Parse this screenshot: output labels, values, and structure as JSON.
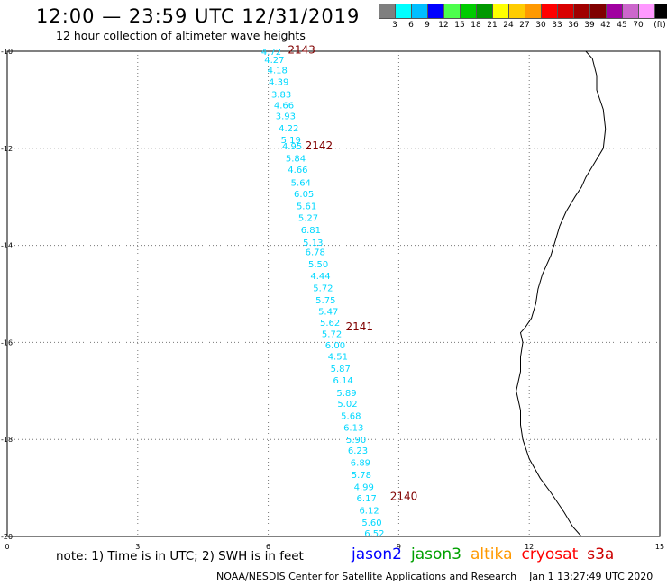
{
  "title": "12:00  —  23:59 UTC 12/31/2019",
  "subtitle": "12 hour collection of altimeter wave heights",
  "color_scale": {
    "colors": [
      "#7f7f7f",
      "#00ffff",
      "#00bfff",
      "#0000ff",
      "#4dff4d",
      "#00cc00",
      "#009900",
      "#ffff00",
      "#ffcc00",
      "#ff9900",
      "#ff0000",
      "#d90000",
      "#a00000",
      "#800000",
      "#a000a0",
      "#cc66cc",
      "#ff99ff",
      "#000000"
    ],
    "labels": [
      "3",
      "6",
      "9",
      "12",
      "15",
      "18",
      "21",
      "24",
      "27",
      "30",
      "33",
      "36",
      "39",
      "42",
      "45",
      "70",
      "(ft)"
    ]
  },
  "axes": {
    "x_ticks": [
      "0",
      "3",
      "6",
      "9",
      "12",
      "15"
    ],
    "y_ticks": [
      "-10",
      "-12",
      "-14",
      "-16",
      "-18",
      "-20"
    ],
    "x_range": [
      0,
      15
    ],
    "y_range": [
      -20,
      -10
    ]
  },
  "track": {
    "color": "#00d8ff",
    "points": [
      {
        "lon": 6.07,
        "lat": -10.0,
        "swh": "4.72"
      },
      {
        "lon": 6.14,
        "lat": -10.17,
        "swh": "4.27"
      },
      {
        "lon": 6.21,
        "lat": -10.38,
        "swh": "4.18"
      },
      {
        "lon": 6.24,
        "lat": -10.62,
        "swh": "4.39"
      },
      {
        "lon": 6.3,
        "lat": -10.88,
        "swh": "3.83"
      },
      {
        "lon": 6.36,
        "lat": -11.1,
        "swh": "4.66"
      },
      {
        "lon": 6.4,
        "lat": -11.33,
        "swh": "3.93"
      },
      {
        "lon": 6.47,
        "lat": -11.58,
        "swh": "4.22"
      },
      {
        "lon": 6.52,
        "lat": -11.82,
        "swh": "5.19"
      },
      {
        "lon": 6.55,
        "lat": -11.95,
        "swh": "4.95"
      },
      {
        "lon": 6.63,
        "lat": -12.2,
        "swh": "5.84"
      },
      {
        "lon": 6.68,
        "lat": -12.43,
        "swh": "4.66"
      },
      {
        "lon": 6.75,
        "lat": -12.7,
        "swh": "5.64"
      },
      {
        "lon": 6.82,
        "lat": -12.93,
        "swh": "6.05"
      },
      {
        "lon": 6.88,
        "lat": -13.18,
        "swh": "5.61"
      },
      {
        "lon": 6.92,
        "lat": -13.42,
        "swh": "5.27"
      },
      {
        "lon": 6.98,
        "lat": -13.67,
        "swh": "6.81"
      },
      {
        "lon": 7.03,
        "lat": -13.93,
        "swh": "5.13"
      },
      {
        "lon": 7.08,
        "lat": -14.13,
        "swh": "6.78"
      },
      {
        "lon": 7.15,
        "lat": -14.38,
        "swh": "5.50"
      },
      {
        "lon": 7.2,
        "lat": -14.62,
        "swh": "4.44"
      },
      {
        "lon": 7.26,
        "lat": -14.87,
        "swh": "5.72"
      },
      {
        "lon": 7.32,
        "lat": -15.12,
        "swh": "5.75"
      },
      {
        "lon": 7.38,
        "lat": -15.35,
        "swh": "5.47"
      },
      {
        "lon": 7.42,
        "lat": -15.58,
        "swh": "5.62"
      },
      {
        "lon": 7.46,
        "lat": -15.82,
        "swh": "5.72"
      },
      {
        "lon": 7.54,
        "lat": -16.05,
        "swh": "6.00"
      },
      {
        "lon": 7.6,
        "lat": -16.28,
        "swh": "4.51"
      },
      {
        "lon": 7.66,
        "lat": -16.53,
        "swh": "5.87"
      },
      {
        "lon": 7.72,
        "lat": -16.77,
        "swh": "6.14"
      },
      {
        "lon": 7.8,
        "lat": -17.03,
        "swh": "5.89"
      },
      {
        "lon": 7.82,
        "lat": -17.25,
        "swh": "5.02"
      },
      {
        "lon": 7.9,
        "lat": -17.5,
        "swh": "5.68"
      },
      {
        "lon": 7.96,
        "lat": -17.75,
        "swh": "6.13"
      },
      {
        "lon": 8.02,
        "lat": -18.0,
        "swh": "5.90"
      },
      {
        "lon": 8.06,
        "lat": -18.22,
        "swh": "6.23"
      },
      {
        "lon": 8.12,
        "lat": -18.47,
        "swh": "6.89"
      },
      {
        "lon": 8.14,
        "lat": -18.72,
        "swh": "5.78"
      },
      {
        "lon": 8.2,
        "lat": -18.97,
        "swh": "4.99"
      },
      {
        "lon": 8.26,
        "lat": -19.2,
        "swh": "6.17"
      },
      {
        "lon": 8.32,
        "lat": -19.45,
        "swh": "6.12"
      },
      {
        "lon": 8.38,
        "lat": -19.7,
        "swh": "5.60"
      },
      {
        "lon": 8.44,
        "lat": -19.93,
        "swh": "6.52"
      }
    ]
  },
  "passes": {
    "color": "#800000",
    "items": [
      {
        "label": "2143",
        "lon": 6.45,
        "lat": -9.97
      },
      {
        "label": "2142",
        "lon": 6.85,
        "lat": -11.95
      },
      {
        "label": "2141",
        "lon": 7.78,
        "lat": -15.68
      },
      {
        "label": "2140",
        "lon": 8.8,
        "lat": -19.17
      }
    ]
  },
  "coastline": [
    [
      13.3,
      -10.0
    ],
    [
      13.45,
      -10.15
    ],
    [
      13.55,
      -10.5
    ],
    [
      13.55,
      -10.8
    ],
    [
      13.7,
      -11.2
    ],
    [
      13.75,
      -11.6
    ],
    [
      13.7,
      -12.0
    ],
    [
      13.5,
      -12.3
    ],
    [
      13.3,
      -12.6
    ],
    [
      13.2,
      -12.8
    ],
    [
      13.05,
      -13.0
    ],
    [
      12.85,
      -13.3
    ],
    [
      12.7,
      -13.6
    ],
    [
      12.6,
      -13.9
    ],
    [
      12.5,
      -14.2
    ],
    [
      12.4,
      -14.4
    ],
    [
      12.3,
      -14.6
    ],
    [
      12.2,
      -14.9
    ],
    [
      12.15,
      -15.2
    ],
    [
      12.05,
      -15.5
    ],
    [
      11.9,
      -15.7
    ],
    [
      11.8,
      -15.8
    ],
    [
      11.85,
      -16.0
    ],
    [
      11.8,
      -16.3
    ],
    [
      11.8,
      -16.6
    ],
    [
      11.75,
      -16.8
    ],
    [
      11.7,
      -17.0
    ],
    [
      11.75,
      -17.2
    ],
    [
      11.8,
      -17.4
    ],
    [
      11.8,
      -17.7
    ],
    [
      11.85,
      -18.0
    ],
    [
      12.0,
      -18.4
    ],
    [
      12.25,
      -18.8
    ],
    [
      12.5,
      -19.1
    ],
    [
      12.8,
      -19.5
    ],
    [
      13.0,
      -19.8
    ],
    [
      13.2,
      -20.0
    ]
  ],
  "note": "note:  1) Time is in UTC;  2) SWH is in feet",
  "satellites": [
    {
      "name": "jason2",
      "color": "#0000ff"
    },
    {
      "name": "jason3",
      "color": "#00a000"
    },
    {
      "name": "altika",
      "color": "#ff9900"
    },
    {
      "name": "cryosat",
      "color": "#ff0000"
    },
    {
      "name": "s3a",
      "color": "#cc0000"
    }
  ],
  "credit": "NOAA/NESDIS Center for Satellite Applications and Research",
  "generated": "Jan  1 13:27:49 UTC 2020"
}
